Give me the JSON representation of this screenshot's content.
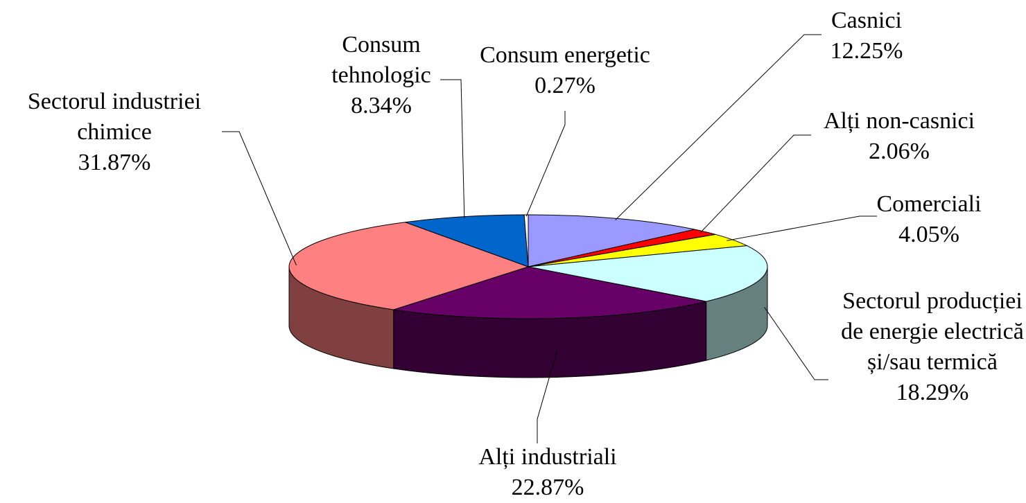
{
  "chart_data": {
    "type": "pie3d",
    "categories": [
      "Casnici",
      "Alți non-casnici",
      "Comerciali",
      "Sectorul producției de energie electrică și/sau termică",
      "Alți industriali",
      "Sectorul industriei chimice",
      "Consum tehnologic",
      "Consum energetic"
    ],
    "values": [
      12.25,
      2.06,
      4.05,
      18.29,
      22.87,
      31.87,
      8.34,
      0.27
    ],
    "value_labels": [
      "12.25%",
      "2.06%",
      "4.05%",
      "18.29%",
      "22.87%",
      "31.87%",
      "8.34%",
      "0.27%"
    ],
    "colors": [
      "#9999ff",
      "#ff0000",
      "#ffff00",
      "#ccffff",
      "#660066",
      "#ff8080",
      "#0066cc",
      "#ffffff"
    ]
  }
}
